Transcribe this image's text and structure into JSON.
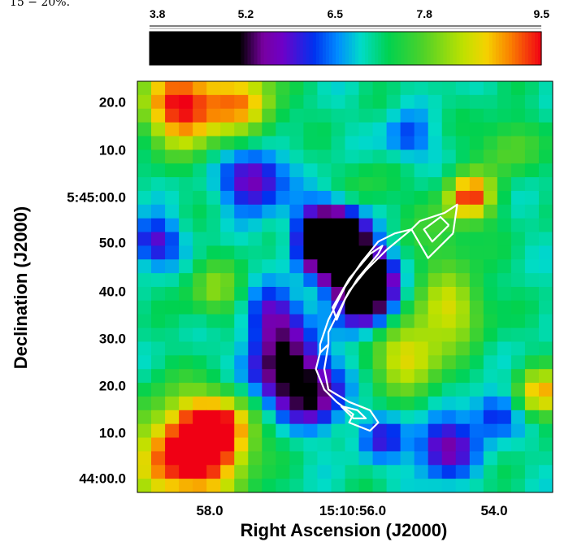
{
  "header_fragment": "15 − 20%.",
  "chart_data": {
    "type": "heatmap",
    "colorbar": {
      "ticks": [
        3.8,
        5.2,
        6.5,
        7.8,
        9.5
      ],
      "range": [
        3.8,
        9.5
      ]
    },
    "x_axis": {
      "title": "Right Ascension (J2000)",
      "tick_labels": [
        "58.0",
        "15:10:56.0",
        "54.0"
      ]
    },
    "y_axis": {
      "title": "Declination (J2000)",
      "tick_labels": [
        "20.0",
        "10.0",
        "5:45:00.0",
        "50.0",
        "40.0",
        "30.0",
        "20.0",
        "10.0",
        "44:00.0"
      ]
    },
    "grid_rows": 30,
    "grid_cols": 30,
    "features": [
      {
        "x": 0.11,
        "y": 0.06,
        "value": 9.6,
        "sigma": 0.07
      },
      {
        "x": 0.26,
        "y": 0.05,
        "value": 8.6,
        "sigma": 0.06
      },
      {
        "x": 0.8,
        "y": 0.28,
        "value": 9.2,
        "sigma": 0.04
      },
      {
        "x": 0.89,
        "y": 0.16,
        "value": 7.9,
        "sigma": 0.05
      },
      {
        "x": 0.12,
        "y": 0.91,
        "value": 9.8,
        "sigma": 0.09
      },
      {
        "x": 0.2,
        "y": 0.84,
        "value": 8.8,
        "sigma": 0.06
      },
      {
        "x": 0.65,
        "y": 0.66,
        "value": 8.6,
        "sigma": 0.07
      },
      {
        "x": 0.76,
        "y": 0.55,
        "value": 8.3,
        "sigma": 0.06
      },
      {
        "x": 0.74,
        "y": 0.38,
        "value": 7.6,
        "sigma": 0.07
      },
      {
        "x": 0.19,
        "y": 0.51,
        "value": 8.0,
        "sigma": 0.05
      },
      {
        "x": 0.97,
        "y": 0.76,
        "value": 8.9,
        "sigma": 0.04
      },
      {
        "x": 0.56,
        "y": 0.26,
        "value": 7.5,
        "sigma": 0.05
      },
      {
        "x": 0.49,
        "y": 0.42,
        "value": 3.8,
        "sigma": 0.05
      },
      {
        "x": 0.55,
        "y": 0.48,
        "value": 3.8,
        "sigma": 0.04
      },
      {
        "x": 0.46,
        "y": 0.37,
        "value": 4.4,
        "sigma": 0.05
      },
      {
        "x": 0.56,
        "y": 0.55,
        "value": 5.2,
        "sigma": 0.05
      },
      {
        "x": 0.36,
        "y": 0.71,
        "value": 5.0,
        "sigma": 0.07
      },
      {
        "x": 0.44,
        "y": 0.77,
        "value": 6.0,
        "sigma": 0.05
      },
      {
        "x": 0.28,
        "y": 0.24,
        "value": 5.4,
        "sigma": 0.05
      },
      {
        "x": 0.04,
        "y": 0.39,
        "value": 5.7,
        "sigma": 0.04
      },
      {
        "x": 0.74,
        "y": 0.89,
        "value": 5.5,
        "sigma": 0.05
      },
      {
        "x": 0.86,
        "y": 0.81,
        "value": 6.0,
        "sigma": 0.04
      },
      {
        "x": 0.65,
        "y": 0.14,
        "value": 6.2,
        "sigma": 0.04
      },
      {
        "x": 0.33,
        "y": 0.57,
        "value": 5.8,
        "sigma": 0.05
      },
      {
        "x": 0.59,
        "y": 0.87,
        "value": 6.1,
        "sigma": 0.04
      }
    ],
    "contour": {
      "color": "#ffffff",
      "paths": [
        [
          [
            0.76,
            0.37
          ],
          [
            0.7,
            0.43
          ],
          [
            0.66,
            0.36
          ],
          [
            0.68,
            0.34
          ],
          [
            0.74,
            0.32
          ],
          [
            0.77,
            0.3
          ],
          [
            0.76,
            0.37
          ]
        ],
        [
          [
            0.75,
            0.35
          ],
          [
            0.71,
            0.39
          ],
          [
            0.69,
            0.36
          ],
          [
            0.73,
            0.33
          ],
          [
            0.75,
            0.35
          ]
        ],
        [
          [
            0.6,
            0.41
          ],
          [
            0.55,
            0.46
          ],
          [
            0.51,
            0.51
          ],
          [
            0.48,
            0.57
          ],
          [
            0.46,
            0.61
          ],
          [
            0.46,
            0.64
          ],
          [
            0.44,
            0.66
          ],
          [
            0.44,
            0.64
          ],
          [
            0.46,
            0.58
          ],
          [
            0.5,
            0.5
          ],
          [
            0.54,
            0.44
          ],
          [
            0.58,
            0.39
          ],
          [
            0.62,
            0.37
          ],
          [
            0.66,
            0.36
          ],
          [
            0.6,
            0.41
          ]
        ],
        [
          [
            0.58,
            0.42
          ],
          [
            0.53,
            0.48
          ],
          [
            0.5,
            0.53
          ],
          [
            0.48,
            0.58
          ],
          [
            0.47,
            0.55
          ],
          [
            0.51,
            0.48
          ],
          [
            0.56,
            0.42
          ],
          [
            0.59,
            0.4
          ],
          [
            0.58,
            0.42
          ]
        ],
        [
          [
            0.46,
            0.64
          ],
          [
            0.45,
            0.7
          ],
          [
            0.46,
            0.75
          ],
          [
            0.51,
            0.78
          ],
          [
            0.56,
            0.8
          ],
          [
            0.58,
            0.83
          ],
          [
            0.56,
            0.85
          ],
          [
            0.51,
            0.83
          ],
          [
            0.52,
            0.81
          ],
          [
            0.48,
            0.78
          ],
          [
            0.45,
            0.75
          ],
          [
            0.43,
            0.7
          ],
          [
            0.44,
            0.66
          ],
          [
            0.46,
            0.64
          ]
        ],
        [
          [
            0.49,
            0.79
          ],
          [
            0.53,
            0.8
          ],
          [
            0.55,
            0.82
          ],
          [
            0.52,
            0.82
          ],
          [
            0.49,
            0.79
          ]
        ]
      ]
    }
  }
}
